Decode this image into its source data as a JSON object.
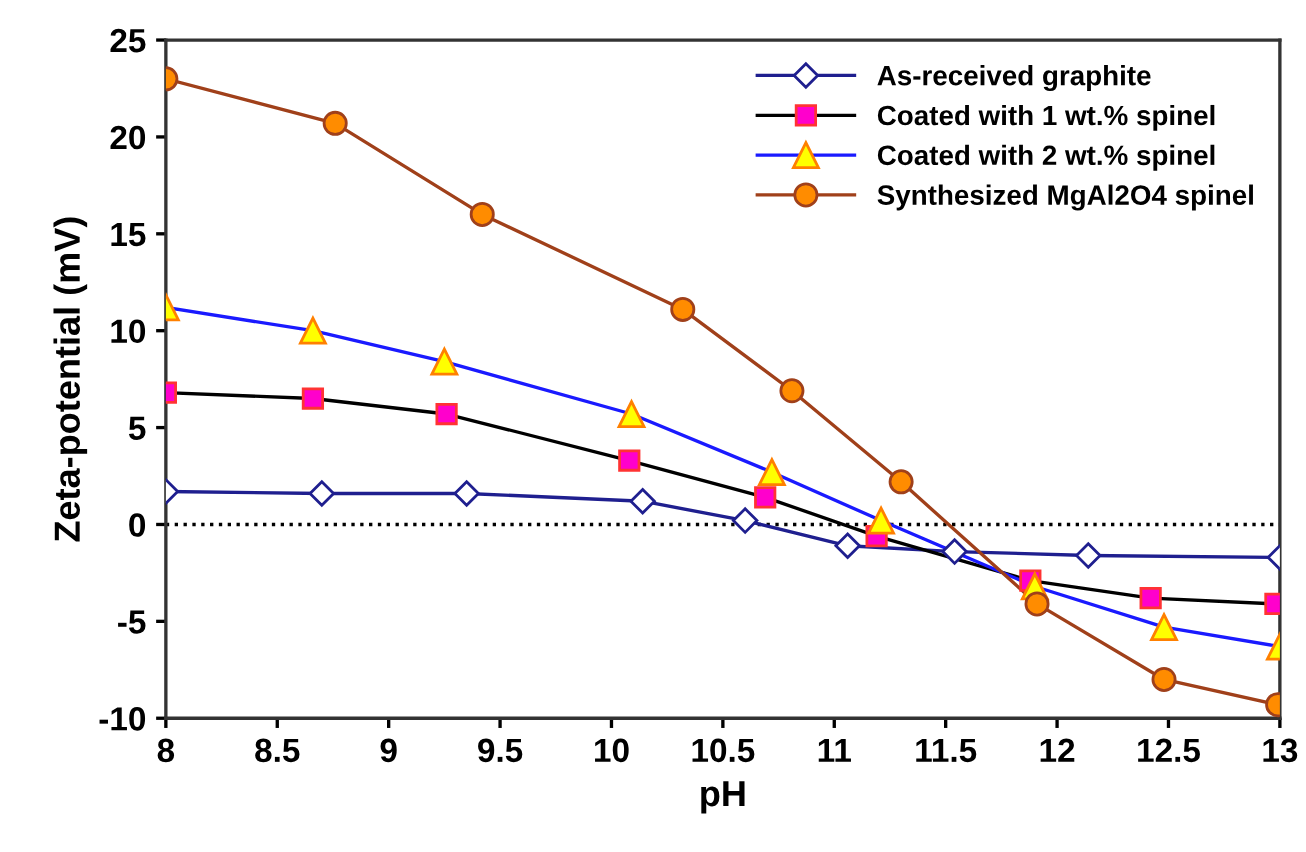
{
  "chart_data": {
    "type": "line",
    "xlabel": "pH",
    "ylabel": "Zeta-potential (mV)",
    "xlim": [
      8,
      13
    ],
    "xticks": [
      8,
      8.5,
      9,
      9.5,
      10,
      10.5,
      11,
      11.5,
      12,
      12.5,
      13
    ],
    "ylim": [
      -10,
      25
    ],
    "yticks": [
      -10,
      -5,
      0,
      5,
      10,
      15,
      20,
      25
    ],
    "grid": false,
    "legend": "top right",
    "line_style": "solid",
    "ref_lines": [
      {
        "axis": "y",
        "value": 0,
        "color": "#000000",
        "line_style": "dotted"
      }
    ],
    "series": [
      {
        "name": "As-received graphite",
        "color": "#1f1f8f",
        "marker": "diamond",
        "colors": [
          "#ffffff",
          "#ffffff",
          "#ffffff",
          "#ffffff",
          "#ffffff",
          "#ffffff",
          "#ffffff",
          "#ffffff",
          "#ffffff"
        ],
        "x": [
          8.0,
          8.7,
          9.35,
          10.14,
          10.6,
          11.06,
          11.54,
          12.14,
          13.0
        ],
        "values": [
          1.7,
          1.6,
          1.6,
          1.2,
          0.2,
          -1.1,
          -1.4,
          -1.6,
          -1.7
        ]
      },
      {
        "name": "Coated with 1 wt.% spinel",
        "color": "#000000",
        "marker": "square",
        "colors": [
          "#ff00cc",
          "#ff00cc",
          "#ff00cc",
          "#ff00cc",
          "#ff00cc",
          "#ff00cc",
          "#ff00cc",
          "#ff00cc",
          "#ff00cc"
        ],
        "x": [
          8.0,
          8.66,
          9.26,
          10.08,
          10.69,
          11.19,
          11.88,
          12.42,
          12.98
        ],
        "values": [
          6.8,
          6.5,
          5.7,
          3.3,
          1.4,
          -0.6,
          -2.9,
          -3.8,
          -4.1
        ]
      },
      {
        "name": "Coated with 2 wt.% spinel",
        "color": "#1a1aff",
        "marker": "triangle",
        "colors": [
          "#ffff00",
          "#ffff00",
          "#ffff00",
          "#ffff00",
          "#ffff00",
          "#ffff00",
          "#ffff00",
          "#ffff00",
          "#ffff00"
        ],
        "x": [
          8.0,
          8.66,
          9.25,
          10.09,
          10.72,
          11.21,
          11.9,
          12.48,
          13.0
        ],
        "values": [
          11.2,
          10.0,
          8.4,
          5.7,
          2.7,
          0.2,
          -3.2,
          -5.3,
          -6.3
        ]
      },
      {
        "name": "Synthesized MgAl2O4 spinel",
        "color": "#a0401a",
        "marker": "circle",
        "colors": [
          "#ff8c00",
          "#ff8c00",
          "#ff8c00",
          "#ff8c00",
          "#ff8c00",
          "#ff8c00",
          "#ff8c00",
          "#ff8c00",
          "#ff8c00"
        ],
        "x": [
          8.0,
          8.76,
          9.42,
          10.32,
          10.81,
          11.3,
          11.91,
          12.48,
          12.99
        ],
        "values": [
          23.0,
          20.7,
          16.0,
          11.1,
          6.9,
          2.2,
          -4.1,
          -8.0,
          -9.3
        ]
      }
    ]
  }
}
